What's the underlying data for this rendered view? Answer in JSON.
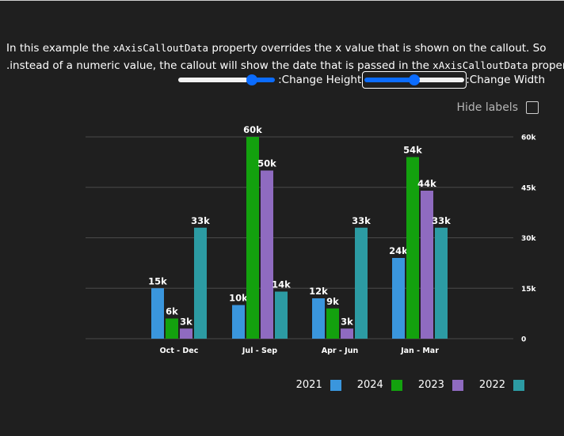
{
  "description": {
    "line1_pre": "In this example the ",
    "line1_code": "xAxisCalloutData",
    "line1_post": " property overrides the x value that is shown on the callout. So",
    "line2_pre": ".instead of a numeric value, the callout will show the date that is passed in the ",
    "line2_code": "xAxisCalloutData",
    "line2_post": " property"
  },
  "controls": {
    "height_label": ":Change Height",
    "width_label": ":Change Width",
    "height_value": 0.78,
    "width_value": 0.5,
    "hide_labels": "Hide labels",
    "hide_labels_checked": false
  },
  "chart_data": {
    "type": "bar",
    "categories": [
      "Oct - Dec",
      "Jul - Sep",
      "Apr - Jun",
      "Jan - Mar"
    ],
    "series": [
      {
        "name": "2021",
        "color": "#3a96dd",
        "values": [
          15,
          10,
          12,
          24
        ],
        "labels": [
          "15k",
          "10k",
          "12k",
          "24k"
        ]
      },
      {
        "name": "2024",
        "color": "#13a10e",
        "values": [
          6,
          60,
          9,
          54
        ],
        "labels": [
          "6k",
          "60k",
          "9k",
          "54k"
        ]
      },
      {
        "name": "2023",
        "color": "#8f6bc0",
        "values": [
          3,
          50,
          3,
          44
        ],
        "labels": [
          "3k",
          "50k",
          "3k",
          "44k"
        ]
      },
      {
        "name": "2022",
        "color": "#2c9ba3",
        "values": [
          33,
          14,
          33,
          33
        ],
        "labels": [
          "33k",
          "14k",
          "33k",
          "33k"
        ]
      }
    ],
    "yticks": [
      {
        "value": 0,
        "label": "0"
      },
      {
        "value": 15,
        "label": "15k"
      },
      {
        "value": 30,
        "label": "30k"
      },
      {
        "value": 45,
        "label": "45k"
      },
      {
        "value": 60,
        "label": "60k"
      }
    ],
    "ylim": [
      0,
      60
    ],
    "y_axis_side": "right",
    "grid": true,
    "legend_position": "bottom-right"
  }
}
